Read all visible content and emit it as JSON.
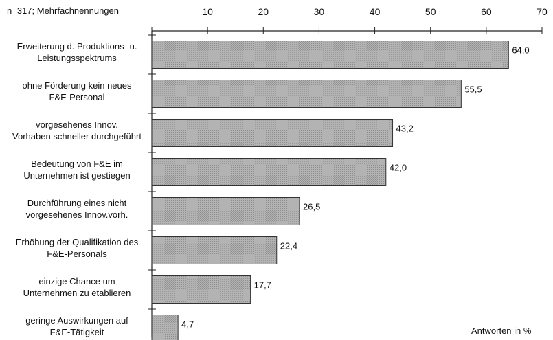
{
  "chart_data": {
    "type": "bar",
    "orientation": "horizontal",
    "note": "n=317; Mehrfachnennungen",
    "unit_label": "Antworten in %",
    "categories": [
      [
        "Erweiterung d. Produktions- u.",
        "Leistungsspektrums"
      ],
      [
        "ohne Förderung kein neues",
        "F&E-Personal"
      ],
      [
        "vorgesehenes Innov.",
        "Vorhaben schneller durchgeführt"
      ],
      [
        "Bedeutung von F&E im",
        "Unternehmen ist gestiegen"
      ],
      [
        "Durchführung eines nicht",
        "vorgesehenes Innov.vorh."
      ],
      [
        "Erhöhung der Qualifikation des",
        "F&E-Personals"
      ],
      [
        "einzige Chance um",
        "Unternehmen zu etablieren"
      ],
      [
        "geringe Auswirkungen auf",
        "F&E-Tätigkeit"
      ]
    ],
    "values": [
      64.0,
      55.5,
      43.2,
      42.0,
      26.5,
      22.4,
      17.7,
      4.7
    ],
    "value_labels": [
      "64,0",
      "55,5",
      "43,2",
      "42,0",
      "26,5",
      "22,4",
      "17,7",
      "4,7"
    ],
    "xlim": [
      0,
      70
    ],
    "xticks": [
      0,
      10,
      20,
      30,
      40,
      50,
      60,
      70
    ],
    "xtick_labels": [
      "",
      "10",
      "20",
      "30",
      "40",
      "50",
      "60",
      "70"
    ],
    "axis_position": "top",
    "grid": false,
    "legend": "none",
    "bar_color": "#a9a9a9",
    "bar_edge_color": "#333333"
  }
}
